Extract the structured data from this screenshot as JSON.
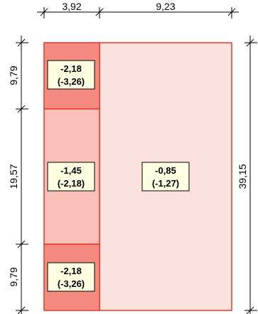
{
  "colors": {
    "edge_zone": "#f58b80",
    "middle_zone": "#fbbfba",
    "field_zone": "#fde1df",
    "border": "#e8392a",
    "label_box": "#ffffe1"
  },
  "dimensions": {
    "top": [
      "3,92",
      "9,23"
    ],
    "left": [
      "9,79",
      "19,57",
      "9,79"
    ],
    "right": "39,15"
  },
  "zones": [
    {
      "id": "corner-top",
      "value": "-2,18",
      "alt": "(-3,26)"
    },
    {
      "id": "edge-middle",
      "value": "-1,45",
      "alt": "(-2,18)"
    },
    {
      "id": "field",
      "value": "-0,85",
      "alt": "(-1,27)"
    },
    {
      "id": "corner-bottom",
      "value": "-2,18",
      "alt": "(-3,26)"
    }
  ]
}
